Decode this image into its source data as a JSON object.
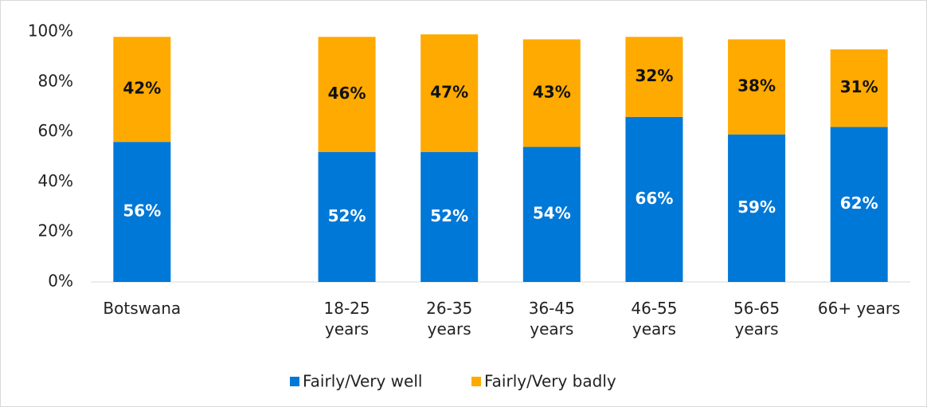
{
  "chart_data": {
    "type": "stacked_bar",
    "categories": [
      "Botswana",
      null,
      "18-25 years",
      "26-35 years",
      "36-45 years",
      "46-55 years",
      "56-65 years",
      "66+ years"
    ],
    "series": [
      {
        "name": "Fairly/Very well",
        "color": "#0078d7",
        "values": [
          56,
          null,
          52,
          52,
          54,
          66,
          59,
          62
        ],
        "value_labels": [
          "56%",
          null,
          "52%",
          "52%",
          "54%",
          "66%",
          "59%",
          "62%"
        ]
      },
      {
        "name": "Fairly/Very badly",
        "color": "#ffaa00",
        "values": [
          42,
          null,
          46,
          47,
          43,
          32,
          38,
          31
        ],
        "value_labels": [
          "42%",
          null,
          "46%",
          "47%",
          "43%",
          "32%",
          "38%",
          "31%"
        ]
      }
    ],
    "ylim": [
      0,
      100
    ],
    "yticks": [
      {
        "value": 0,
        "label": "0%"
      },
      {
        "value": 20,
        "label": "20%"
      },
      {
        "value": 40,
        "label": "40%"
      },
      {
        "value": 60,
        "label": "60%"
      },
      {
        "value": 80,
        "label": "80%"
      },
      {
        "value": 100,
        "label": "100%"
      }
    ],
    "legend": "bottom"
  }
}
